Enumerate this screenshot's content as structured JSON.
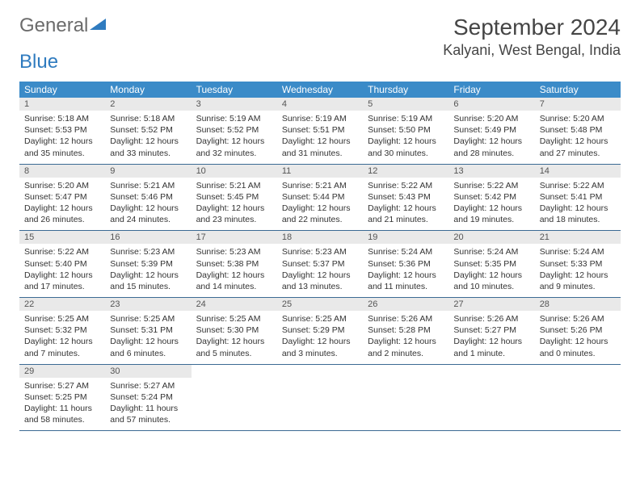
{
  "brand": {
    "text1": "General",
    "text2": "Blue"
  },
  "title": "September 2024",
  "location": "Kalyani, West Bengal, India",
  "colors": {
    "header_bg": "#3b8bc8",
    "header_text": "#ffffff",
    "daynum_bg": "#e9e9e9",
    "row_border": "#3b6a93",
    "logo_gray": "#6b6b6b",
    "logo_blue": "#2f7bbf"
  },
  "weekdays": [
    "Sunday",
    "Monday",
    "Tuesday",
    "Wednesday",
    "Thursday",
    "Friday",
    "Saturday"
  ],
  "fonts": {
    "title_size": 28,
    "location_size": 18,
    "weekday_size": 12,
    "daynum_size": 11,
    "cell_size": 10.5
  },
  "weeks": [
    [
      {
        "n": "1",
        "sunrise": "5:18 AM",
        "sunset": "5:53 PM",
        "daylight": "12 hours and 35 minutes."
      },
      {
        "n": "2",
        "sunrise": "5:18 AM",
        "sunset": "5:52 PM",
        "daylight": "12 hours and 33 minutes."
      },
      {
        "n": "3",
        "sunrise": "5:19 AM",
        "sunset": "5:52 PM",
        "daylight": "12 hours and 32 minutes."
      },
      {
        "n": "4",
        "sunrise": "5:19 AM",
        "sunset": "5:51 PM",
        "daylight": "12 hours and 31 minutes."
      },
      {
        "n": "5",
        "sunrise": "5:19 AM",
        "sunset": "5:50 PM",
        "daylight": "12 hours and 30 minutes."
      },
      {
        "n": "6",
        "sunrise": "5:20 AM",
        "sunset": "5:49 PM",
        "daylight": "12 hours and 28 minutes."
      },
      {
        "n": "7",
        "sunrise": "5:20 AM",
        "sunset": "5:48 PM",
        "daylight": "12 hours and 27 minutes."
      }
    ],
    [
      {
        "n": "8",
        "sunrise": "5:20 AM",
        "sunset": "5:47 PM",
        "daylight": "12 hours and 26 minutes."
      },
      {
        "n": "9",
        "sunrise": "5:21 AM",
        "sunset": "5:46 PM",
        "daylight": "12 hours and 24 minutes."
      },
      {
        "n": "10",
        "sunrise": "5:21 AM",
        "sunset": "5:45 PM",
        "daylight": "12 hours and 23 minutes."
      },
      {
        "n": "11",
        "sunrise": "5:21 AM",
        "sunset": "5:44 PM",
        "daylight": "12 hours and 22 minutes."
      },
      {
        "n": "12",
        "sunrise": "5:22 AM",
        "sunset": "5:43 PM",
        "daylight": "12 hours and 21 minutes."
      },
      {
        "n": "13",
        "sunrise": "5:22 AM",
        "sunset": "5:42 PM",
        "daylight": "12 hours and 19 minutes."
      },
      {
        "n": "14",
        "sunrise": "5:22 AM",
        "sunset": "5:41 PM",
        "daylight": "12 hours and 18 minutes."
      }
    ],
    [
      {
        "n": "15",
        "sunrise": "5:22 AM",
        "sunset": "5:40 PM",
        "daylight": "12 hours and 17 minutes."
      },
      {
        "n": "16",
        "sunrise": "5:23 AM",
        "sunset": "5:39 PM",
        "daylight": "12 hours and 15 minutes."
      },
      {
        "n": "17",
        "sunrise": "5:23 AM",
        "sunset": "5:38 PM",
        "daylight": "12 hours and 14 minutes."
      },
      {
        "n": "18",
        "sunrise": "5:23 AM",
        "sunset": "5:37 PM",
        "daylight": "12 hours and 13 minutes."
      },
      {
        "n": "19",
        "sunrise": "5:24 AM",
        "sunset": "5:36 PM",
        "daylight": "12 hours and 11 minutes."
      },
      {
        "n": "20",
        "sunrise": "5:24 AM",
        "sunset": "5:35 PM",
        "daylight": "12 hours and 10 minutes."
      },
      {
        "n": "21",
        "sunrise": "5:24 AM",
        "sunset": "5:33 PM",
        "daylight": "12 hours and 9 minutes."
      }
    ],
    [
      {
        "n": "22",
        "sunrise": "5:25 AM",
        "sunset": "5:32 PM",
        "daylight": "12 hours and 7 minutes."
      },
      {
        "n": "23",
        "sunrise": "5:25 AM",
        "sunset": "5:31 PM",
        "daylight": "12 hours and 6 minutes."
      },
      {
        "n": "24",
        "sunrise": "5:25 AM",
        "sunset": "5:30 PM",
        "daylight": "12 hours and 5 minutes."
      },
      {
        "n": "25",
        "sunrise": "5:25 AM",
        "sunset": "5:29 PM",
        "daylight": "12 hours and 3 minutes."
      },
      {
        "n": "26",
        "sunrise": "5:26 AM",
        "sunset": "5:28 PM",
        "daylight": "12 hours and 2 minutes."
      },
      {
        "n": "27",
        "sunrise": "5:26 AM",
        "sunset": "5:27 PM",
        "daylight": "12 hours and 1 minute."
      },
      {
        "n": "28",
        "sunrise": "5:26 AM",
        "sunset": "5:26 PM",
        "daylight": "12 hours and 0 minutes."
      }
    ],
    [
      {
        "n": "29",
        "sunrise": "5:27 AM",
        "sunset": "5:25 PM",
        "daylight": "11 hours and 58 minutes."
      },
      {
        "n": "30",
        "sunrise": "5:27 AM",
        "sunset": "5:24 PM",
        "daylight": "11 hours and 57 minutes."
      },
      null,
      null,
      null,
      null,
      null
    ]
  ],
  "labels": {
    "sunrise": "Sunrise:",
    "sunset": "Sunset:",
    "daylight": "Daylight:"
  }
}
